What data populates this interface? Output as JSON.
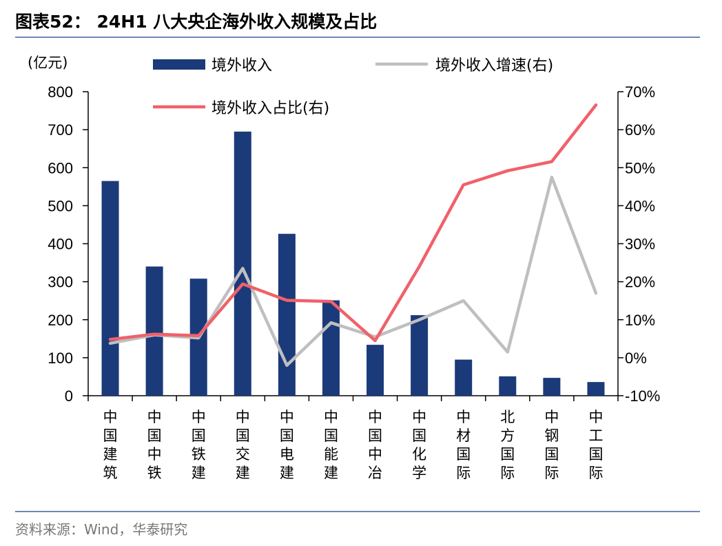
{
  "header": {
    "title": "图表52：  24H1 八大央企海外收入规模及占比"
  },
  "footer": {
    "source": "资料来源：Wind，华泰研究"
  },
  "chart_data": {
    "type": "bar",
    "title": "",
    "categories": [
      "中国建筑",
      "中国中铁",
      "中国铁建",
      "中国交建",
      "中国电建",
      "中国能建",
      "中国中冶",
      "中国化学",
      "中材国际",
      "北方国际",
      "中钢国际",
      "中工国际"
    ],
    "left_axis": {
      "unit_label": "(亿元)",
      "ylim": [
        0,
        800
      ],
      "ticks": [
        "0",
        "100",
        "200",
        "300",
        "400",
        "500",
        "600",
        "700",
        "800"
      ]
    },
    "right_axis": {
      "ylim": [
        -10,
        70
      ],
      "ticks": [
        "-10%",
        "0%",
        "10%",
        "20%",
        "30%",
        "40%",
        "50%",
        "60%",
        "70%"
      ]
    },
    "legend_placement": "top",
    "grid": false,
    "series": [
      {
        "name": "境外收入",
        "kind": "bar",
        "axis": "left",
        "color": "#1b3a7a",
        "values": [
          565,
          340,
          308,
          695,
          426,
          251,
          134,
          212,
          95,
          51,
          47,
          36
        ]
      },
      {
        "name": "境外收入增速(右)",
        "kind": "line",
        "axis": "right",
        "color": "#bfbfbf",
        "values": [
          3.8,
          6.0,
          5.2,
          23.5,
          -2.0,
          9.2,
          5.5,
          10.0,
          15.0,
          1.5,
          47.5,
          17.0
        ]
      },
      {
        "name": "境外收入占比(右)",
        "kind": "line",
        "axis": "right",
        "color": "#f0616a",
        "values": [
          4.8,
          6.2,
          5.8,
          19.4,
          15.1,
          14.8,
          4.5,
          24.0,
          45.5,
          49.2,
          51.6,
          66.5
        ]
      }
    ]
  }
}
